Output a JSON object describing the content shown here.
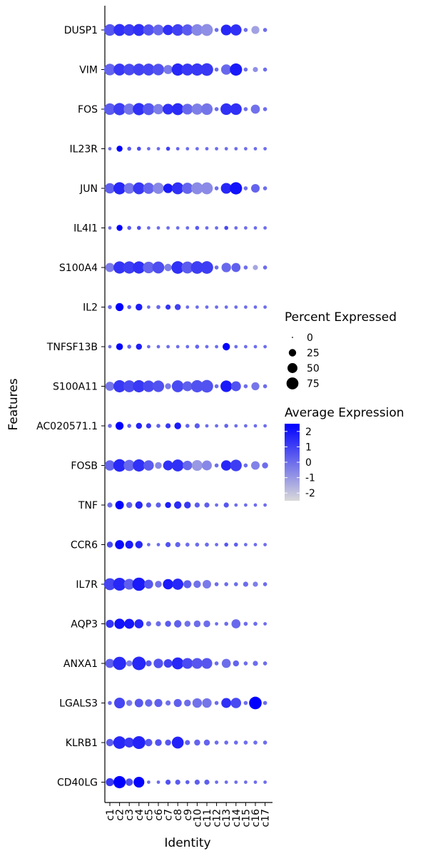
{
  "chart_data": {
    "type": "dotplot",
    "title": "",
    "xlabel": "Identity",
    "ylabel": "Features",
    "clusters": [
      "c1",
      "c2",
      "c3",
      "c4",
      "c5",
      "c6",
      "c7",
      "c8",
      "c9",
      "c10",
      "c11",
      "c12",
      "c13",
      "c14",
      "c15",
      "c16",
      "c17"
    ],
    "features": [
      "DUSP1",
      "VIM",
      "FOS",
      "IL23R",
      "JUN",
      "IL4I1",
      "S100A4",
      "IL2",
      "TNFSF13B",
      "S100A11",
      "AC020571.1",
      "FOSB",
      "TNF",
      "CCR6",
      "IL7R",
      "AQP3",
      "ANXA1",
      "LGALS3",
      "KLRB1",
      "CD40LG"
    ],
    "size_legend": {
      "title": "Percent Expressed",
      "breaks": [
        0,
        25,
        50,
        75
      ]
    },
    "color_legend": {
      "title": "Average Expression",
      "breaks": [
        2,
        1,
        0,
        -1,
        -2
      ],
      "low_color": "#d9d9d9",
      "high_color": "#0000ff",
      "range": [
        -2.5,
        2.5
      ]
    },
    "pct_expressed": [
      [
        70,
        75,
        70,
        75,
        65,
        60,
        55,
        70,
        65,
        70,
        75,
        5,
        60,
        65,
        5,
        30,
        5
      ],
      [
        70,
        75,
        70,
        75,
        75,
        70,
        40,
        80,
        75,
        80,
        85,
        5,
        55,
        80,
        5,
        10,
        5
      ],
      [
        70,
        80,
        65,
        80,
        75,
        55,
        60,
        75,
        60,
        65,
        70,
        5,
        70,
        70,
        5,
        40,
        5
      ],
      [
        3,
        15,
        5,
        5,
        3,
        3,
        5,
        3,
        3,
        3,
        3,
        3,
        3,
        3,
        3,
        3,
        3
      ],
      [
        55,
        80,
        60,
        75,
        65,
        65,
        45,
        75,
        65,
        75,
        75,
        5,
        60,
        80,
        5,
        35,
        5
      ],
      [
        3,
        15,
        5,
        5,
        3,
        3,
        3,
        3,
        3,
        5,
        3,
        3,
        5,
        3,
        3,
        3,
        3
      ],
      [
        40,
        80,
        80,
        80,
        70,
        75,
        25,
        85,
        75,
        85,
        85,
        5,
        45,
        40,
        5,
        10,
        5
      ],
      [
        5,
        30,
        5,
        20,
        3,
        5,
        10,
        15,
        3,
        3,
        3,
        3,
        3,
        3,
        3,
        3,
        3
      ],
      [
        3,
        20,
        5,
        15,
        3,
        3,
        3,
        3,
        3,
        5,
        3,
        3,
        25,
        3,
        3,
        3,
        3
      ],
      [
        40,
        80,
        75,
        80,
        70,
        70,
        15,
        75,
        50,
        80,
        85,
        5,
        70,
        50,
        5,
        30,
        5
      ],
      [
        5,
        30,
        5,
        15,
        10,
        5,
        10,
        20,
        5,
        10,
        3,
        3,
        5,
        3,
        3,
        3,
        3
      ],
      [
        55,
        85,
        65,
        80,
        55,
        20,
        50,
        75,
        45,
        60,
        50,
        5,
        55,
        70,
        5,
        35,
        15
      ],
      [
        10,
        35,
        15,
        25,
        10,
        10,
        15,
        25,
        20,
        10,
        10,
        3,
        10,
        3,
        3,
        3,
        3
      ],
      [
        15,
        40,
        30,
        25,
        3,
        3,
        10,
        10,
        5,
        5,
        5,
        3,
        5,
        5,
        3,
        3,
        3
      ],
      [
        75,
        90,
        60,
        95,
        40,
        20,
        55,
        65,
        30,
        25,
        35,
        5,
        5,
        5,
        10,
        10,
        5
      ],
      [
        30,
        55,
        50,
        40,
        10,
        10,
        15,
        25,
        15,
        20,
        20,
        3,
        5,
        40,
        5,
        5,
        3
      ],
      [
        40,
        95,
        15,
        100,
        15,
        45,
        35,
        75,
        60,
        60,
        60,
        5,
        40,
        15,
        5,
        10,
        5
      ],
      [
        5,
        60,
        15,
        35,
        25,
        30,
        10,
        30,
        20,
        45,
        45,
        5,
        50,
        55,
        5,
        85,
        5
      ],
      [
        25,
        85,
        50,
        90,
        25,
        20,
        15,
        75,
        10,
        15,
        15,
        5,
        5,
        5,
        5,
        5,
        5
      ],
      [
        30,
        80,
        25,
        60,
        3,
        3,
        10,
        10,
        5,
        10,
        10,
        3,
        3,
        3,
        3,
        3,
        3
      ]
    ],
    "avg_expression": [
      [
        0.5,
        1.4,
        1.1,
        1.4,
        0.6,
        0.1,
        1.4,
        1.0,
        0.4,
        -0.6,
        -0.8,
        0,
        1.6,
        1.4,
        0,
        -1.2,
        0
      ],
      [
        0.2,
        1.2,
        0.8,
        1.0,
        0.9,
        0.6,
        -0.3,
        1.6,
        1.2,
        1.2,
        1.2,
        0,
        0.1,
        1.9,
        0,
        -0.8,
        0
      ],
      [
        0.4,
        1.1,
        -0.2,
        1.4,
        0.5,
        -0.4,
        1.4,
        1.5,
        0.1,
        -0.4,
        -0.2,
        0,
        1.4,
        1.4,
        0,
        -0.1,
        0
      ],
      [
        0,
        2.6,
        0.3,
        0.8,
        0,
        0,
        1.0,
        0.2,
        0,
        0,
        0,
        0,
        0,
        0,
        0,
        0,
        0
      ],
      [
        0.3,
        1.6,
        -0.2,
        1.2,
        0.2,
        -0.6,
        1.9,
        1.4,
        0.2,
        -0.7,
        -0.7,
        0,
        1.6,
        2.1,
        0,
        0.2,
        0
      ],
      [
        0,
        2.6,
        0.3,
        0.7,
        0,
        0,
        0,
        0,
        0,
        0.4,
        0,
        0,
        0.8,
        0,
        0,
        0,
        0
      ],
      [
        -0.3,
        1.3,
        1.1,
        1.4,
        0.2,
        0.7,
        -0.4,
        1.4,
        0.4,
        1.1,
        1.1,
        0,
        0.1,
        0.3,
        0,
        -1.3,
        0
      ],
      [
        0,
        2.6,
        0.3,
        1.8,
        0,
        0.1,
        1.3,
        1.0,
        0,
        0,
        0,
        0,
        0,
        0,
        0,
        0,
        0
      ],
      [
        0,
        2.4,
        0.2,
        1.8,
        0,
        0,
        0,
        0,
        0,
        0.2,
        0,
        0,
        2.4,
        0,
        0,
        0,
        0
      ],
      [
        -0.2,
        1.2,
        0.8,
        1.2,
        0.8,
        0.6,
        -0.3,
        0.8,
        0.3,
        0.6,
        0.6,
        0,
        1.9,
        0.6,
        0,
        -0.2,
        0
      ],
      [
        0,
        2.6,
        0.3,
        1.7,
        1.2,
        0.2,
        1.2,
        1.9,
        0.2,
        0.4,
        0,
        0,
        0.2,
        0,
        0,
        0,
        0
      ],
      [
        0.2,
        1.6,
        0.1,
        1.4,
        0.4,
        -0.6,
        1.4,
        1.4,
        0.1,
        -1.0,
        -0.6,
        0,
        1.6,
        1.1,
        0,
        -0.5,
        0
      ],
      [
        0,
        2.4,
        0.3,
        1.6,
        0.5,
        0.3,
        1.8,
        1.5,
        1.2,
        0.4,
        0.3,
        0,
        0.5,
        0,
        0,
        0,
        0
      ],
      [
        0.8,
        2.3,
        1.9,
        1.6,
        0,
        0,
        0.6,
        0.2,
        0,
        0,
        0,
        0,
        0.5,
        0.3,
        0,
        0,
        0
      ],
      [
        0.9,
        1.6,
        0.3,
        1.9,
        0.5,
        -0.1,
        1.9,
        1.6,
        0.3,
        -0.1,
        -0.3,
        0,
        0,
        0,
        0,
        -0.4,
        0
      ],
      [
        1.3,
        2.1,
        2.0,
        1.6,
        0,
        0,
        0.4,
        0.3,
        -0.1,
        0,
        0,
        0,
        0,
        0.1,
        0,
        0,
        0
      ],
      [
        0.3,
        1.5,
        -0.4,
        1.6,
        0.5,
        0.6,
        1.0,
        1.6,
        0.8,
        0.5,
        0.5,
        0,
        0,
        0.2,
        0,
        0,
        0
      ],
      [
        0,
        0.9,
        -0.3,
        0.5,
        0.1,
        0.3,
        -0.1,
        0.3,
        0,
        -0.1,
        -0.2,
        0,
        1.4,
        0.8,
        0,
        2.6,
        0
      ],
      [
        0.4,
        1.6,
        1.2,
        1.7,
        0.5,
        0.6,
        0.5,
        1.7,
        0.2,
        0.2,
        0.2,
        0,
        0,
        0,
        0,
        0,
        0
      ],
      [
        1.2,
        2.6,
        0.8,
        2.4,
        0,
        0,
        0.6,
        0.4,
        0.3,
        0.3,
        0.3,
        0,
        0,
        0,
        0,
        0,
        0
      ]
    ]
  }
}
